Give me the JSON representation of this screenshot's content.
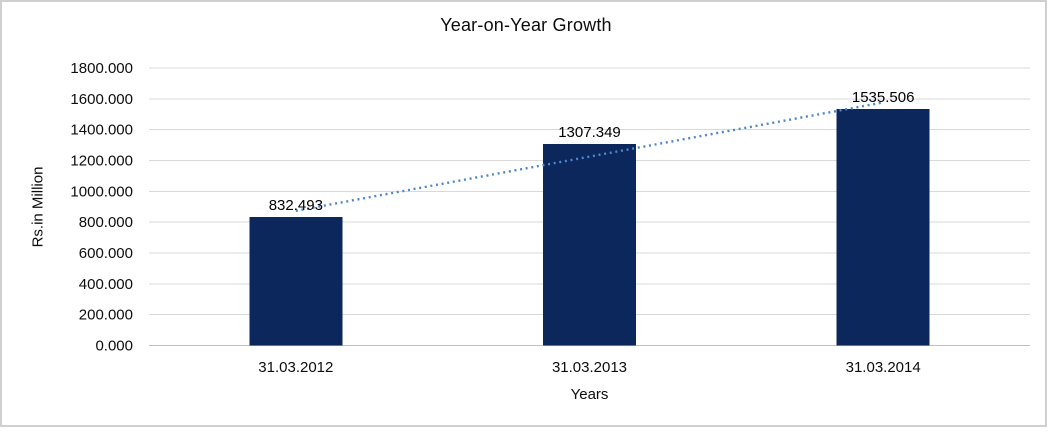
{
  "chart_data": {
    "type": "bar",
    "title": "Year-on-Year Growth",
    "xlabel": "Years",
    "ylabel": "Rs.in Million",
    "categories": [
      "31.03.2012",
      "31.03.2013",
      "31.03.2014"
    ],
    "values": [
      832.493,
      1307.349,
      1535.506
    ],
    "data_labels": [
      "832.493",
      "1307.349",
      "1535.506"
    ],
    "ylim": [
      0,
      1800
    ],
    "ytick_step": 200,
    "ytick_labels": [
      "0.000",
      "200.000",
      "400.000",
      "600.000",
      "800.000",
      "1000.000",
      "1200.000",
      "1400.000",
      "1600.000",
      "1800.000"
    ],
    "grid": true,
    "legend": false,
    "trendline": {
      "type": "linear",
      "style": "dotted"
    },
    "colors": {
      "bar": "#0b275c",
      "trendline": "#4e88cc",
      "gridline": "#d9d9d9",
      "axis_line": "#bfbfbf",
      "text": "#0d0d0d",
      "frame_border": "#d0d0d0",
      "background": "#ffffff"
    }
  }
}
